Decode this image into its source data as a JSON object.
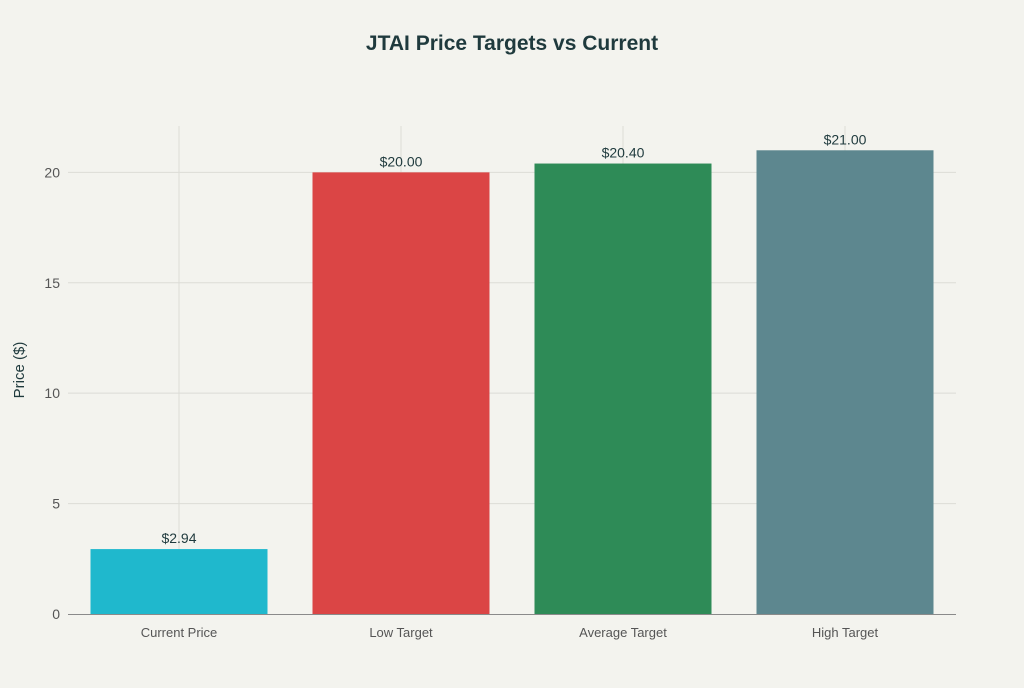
{
  "chart_data": {
    "type": "bar",
    "title": "JTAI Price Targets vs Current",
    "xlabel": "",
    "ylabel": "Price ($)",
    "categories": [
      "Current Price",
      "Low Target",
      "Average Target",
      "High Target"
    ],
    "values": [
      2.94,
      20.0,
      20.4,
      21.0
    ],
    "data_labels": [
      "$2.94",
      "$20.00",
      "$20.40",
      "$21.00"
    ],
    "colors": [
      "#1FB8CD",
      "#DB4545",
      "#2E8B57",
      "#5D878F"
    ],
    "ylim": [
      0,
      22.1
    ],
    "yticks": [
      0,
      5,
      10,
      15,
      20
    ],
    "grid": true,
    "legend": "none"
  }
}
